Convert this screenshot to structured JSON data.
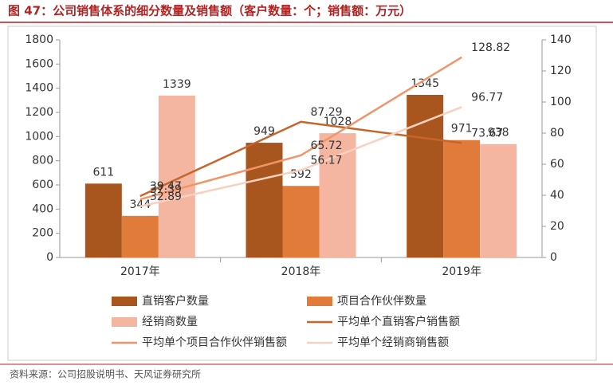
{
  "chart_data": {
    "type": "bar",
    "title": "图 47：公司销售体系的细分数量及销售额（客户数量：个；销售额：万元）",
    "source": "资料来源：公司招股说明书、天风证券研究所",
    "categories": [
      "2017年",
      "2018年",
      "2019年"
    ],
    "series": [
      {
        "name": "直销客户数量",
        "type": "bar",
        "color": "#a9561e",
        "values": [
          611,
          949,
          1345
        ]
      },
      {
        "name": "项目合作伙伴数量",
        "type": "bar",
        "color": "#e07b39",
        "values": [
          344,
          592,
          971
        ]
      },
      {
        "name": "经销商数量",
        "type": "bar",
        "color": "#f4b6a0",
        "values": [
          1339,
          1028,
          938
        ]
      },
      {
        "name": "平均单个直销客户销售额",
        "type": "line",
        "axis": "y2",
        "color": "#c8642a",
        "values": [
          39.47,
          87.29,
          73.67
        ]
      },
      {
        "name": "平均单个项目合作伙伴销售额",
        "type": "line",
        "axis": "y2",
        "color": "#f0956a",
        "values": [
          37.39,
          65.72,
          128.82
        ]
      },
      {
        "name": "平均单个经销商销售额",
        "type": "line",
        "axis": "y2",
        "color": "#f8d0c0",
        "values": [
          32.89,
          56.17,
          96.77
        ]
      }
    ],
    "ylim": [
      0,
      1800
    ],
    "yticks": [
      0,
      200,
      400,
      600,
      800,
      1000,
      1200,
      1400,
      1600,
      1800
    ],
    "y2lim": [
      0,
      140
    ],
    "y2ticks": [
      0,
      20,
      40,
      60,
      80,
      100,
      120,
      140
    ]
  }
}
